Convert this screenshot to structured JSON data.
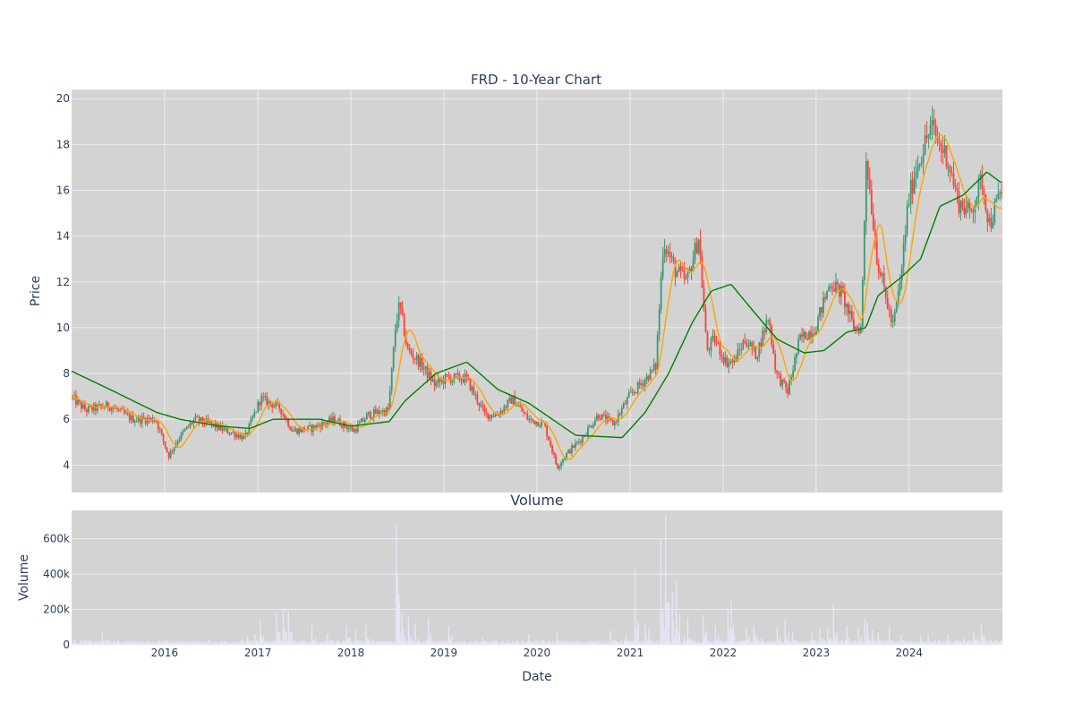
{
  "colors": {
    "plot_bg": "#d3d3d3",
    "grid": "#ecedf0",
    "up_candle": "#3d9970",
    "down_candle": "#ff4136",
    "ma_short": "#ffa500",
    "ma_long": "#008000",
    "volume_bar": "#e6e6fa",
    "text": "#2a3f5f"
  },
  "chart_data": [
    {
      "type": "candlestick",
      "title": "FRD - 10-Year Chart",
      "ylabel": "Price",
      "ylim": [
        2.8,
        20.4
      ],
      "xlim": [
        "2015-01-01",
        "2025-01-01"
      ],
      "yticks": [
        4,
        6,
        8,
        10,
        12,
        14,
        16,
        18,
        20
      ],
      "grid": true,
      "series": [
        {
          "role": "candles",
          "increasing_color": "#3d9970",
          "decreasing_color": "#ff4136"
        },
        {
          "role": "short moving average",
          "color": "#ffa500"
        },
        {
          "role": "long moving average",
          "color": "#008000"
        }
      ],
      "close_estimate": {
        "dates": [
          "2015-01-01",
          "2015-03-01",
          "2015-06-01",
          "2015-09-01",
          "2015-12-01",
          "2016-01-20",
          "2016-03-01",
          "2016-05-01",
          "2016-07-01",
          "2016-09-01",
          "2016-11-15",
          "2017-01-15",
          "2017-04-01",
          "2017-05-20",
          "2017-08-01",
          "2017-11-01",
          "2018-01-15",
          "2018-03-15",
          "2018-06-01",
          "2018-07-01",
          "2018-07-15",
          "2018-08-15",
          "2018-10-01",
          "2018-12-01",
          "2019-01-15",
          "2019-04-01",
          "2019-06-15",
          "2019-08-01",
          "2019-10-01",
          "2019-12-01",
          "2020-02-01",
          "2020-03-01",
          "2020-03-23",
          "2020-05-01",
          "2020-07-01",
          "2020-09-01",
          "2020-11-01",
          "2021-01-01",
          "2021-03-01",
          "2021-04-15",
          "2021-05-15",
          "2021-07-01",
          "2021-08-15",
          "2021-10-01",
          "2021-11-01",
          "2021-12-01",
          "2022-01-15",
          "2022-02-15",
          "2022-04-01",
          "2022-05-15",
          "2022-07-01",
          "2022-08-01",
          "2022-09-15",
          "2022-11-01",
          "2023-01-01",
          "2023-03-01",
          "2023-04-15",
          "2023-06-01",
          "2023-07-01",
          "2023-07-20",
          "2023-09-01",
          "2023-11-01",
          "2023-12-01",
          "2024-01-01",
          "2024-02-01",
          "2024-04-01",
          "2024-05-01",
          "2024-06-01",
          "2024-07-15",
          "2024-09-01",
          "2024-10-15",
          "2024-11-15",
          "2024-12-31"
        ],
        "values": [
          7.0,
          6.4,
          6.6,
          6.0,
          6.0,
          4.4,
          5.2,
          6.0,
          5.8,
          5.5,
          5.2,
          6.9,
          6.5,
          5.5,
          5.6,
          6.0,
          5.5,
          6.2,
          6.4,
          10.3,
          11.0,
          9.0,
          8.5,
          7.5,
          7.8,
          7.8,
          6.2,
          6.2,
          6.9,
          6.0,
          5.8,
          4.8,
          3.9,
          4.5,
          5.2,
          6.2,
          5.8,
          7.0,
          7.7,
          8.3,
          13.8,
          12.5,
          12.0,
          14.0,
          9.0,
          9.5,
          8.5,
          8.5,
          9.5,
          8.8,
          10.5,
          8.0,
          7.2,
          9.5,
          10.0,
          12.0,
          11.5,
          10.0,
          10.0,
          17.5,
          13.0,
          10.0,
          12.0,
          15.5,
          17.0,
          18.8,
          18.0,
          17.5,
          15.5,
          15.0,
          16.5,
          14.5,
          16.0
        ]
      },
      "long_ma_estimate": {
        "dates": [
          "2015-01-01",
          "2015-06-01",
          "2015-12-01",
          "2016-03-01",
          "2016-08-01",
          "2016-12-01",
          "2017-03-01",
          "2017-09-01",
          "2018-01-01",
          "2018-06-01",
          "2018-08-01",
          "2018-12-01",
          "2019-04-01",
          "2019-08-01",
          "2019-12-01",
          "2020-06-01",
          "2020-12-01",
          "2021-03-01",
          "2021-06-01",
          "2021-09-01",
          "2021-11-15",
          "2022-02-01",
          "2022-05-01",
          "2022-08-01",
          "2022-11-15",
          "2023-02-01",
          "2023-05-01",
          "2023-07-15",
          "2023-09-01",
          "2023-12-01",
          "2024-02-15",
          "2024-05-01",
          "2024-08-01",
          "2024-11-01",
          "2024-12-31"
        ],
        "values": [
          8.1,
          7.3,
          6.3,
          6.0,
          5.7,
          5.6,
          6.0,
          6.0,
          5.7,
          5.9,
          6.8,
          8.0,
          8.5,
          7.3,
          6.7,
          5.3,
          5.2,
          6.3,
          8.0,
          10.2,
          11.6,
          11.9,
          10.7,
          9.5,
          8.9,
          9.0,
          9.8,
          10.0,
          11.4,
          12.2,
          13.0,
          15.3,
          15.8,
          16.8,
          16.3
        ]
      }
    },
    {
      "type": "bar",
      "title": "Volume",
      "ylabel": "Volume",
      "xlabel": "Date",
      "ylim": [
        0,
        760000
      ],
      "yticks": [
        0,
        200000,
        400000,
        600000
      ],
      "ytick_labels": [
        "0",
        "200k",
        "400k",
        "600k"
      ],
      "x_tick_labels": [
        "2016",
        "2017",
        "2018",
        "2019",
        "2020",
        "2021",
        "2022",
        "2023",
        "2024"
      ],
      "baseline_volume_estimate": 15000,
      "spikes": {
        "dates": [
          "2015-05-01",
          "2016-11-20",
          "2016-12-20",
          "2017-01-10",
          "2017-03-15",
          "2017-04-10",
          "2017-05-01",
          "2017-08-01",
          "2017-10-01",
          "2017-12-15",
          "2018-01-20",
          "2018-03-01",
          "2018-06-28",
          "2018-07-02",
          "2018-07-20",
          "2018-08-15",
          "2018-09-10",
          "2018-11-01",
          "2019-01-20",
          "2019-06-01",
          "2019-12-01",
          "2020-03-20",
          "2020-10-15",
          "2020-12-15",
          "2021-01-20",
          "2021-03-01",
          "2021-03-15",
          "2021-05-01",
          "2021-05-20",
          "2021-06-15",
          "2021-07-01",
          "2021-08-01",
          "2021-08-15",
          "2021-10-15",
          "2021-12-01",
          "2022-01-20",
          "2022-02-01",
          "2022-04-01",
          "2022-05-01",
          "2022-06-01",
          "2022-08-01",
          "2022-09-01",
          "2022-10-01",
          "2022-12-15",
          "2023-01-15",
          "2023-02-15",
          "2023-03-10",
          "2023-05-01",
          "2023-06-15",
          "2023-07-10",
          "2023-07-20",
          "2023-08-10",
          "2023-09-01",
          "2023-10-15",
          "2023-12-01",
          "2024-02-15",
          "2024-03-15",
          "2024-06-01",
          "2024-08-01",
          "2024-09-10",
          "2024-10-10",
          "2024-11-15"
        ],
        "values": [
          70000,
          45000,
          60000,
          140000,
          180000,
          200000,
          190000,
          110000,
          60000,
          110000,
          80000,
          120000,
          680000,
          390000,
          180000,
          160000,
          120000,
          150000,
          110000,
          40000,
          60000,
          70000,
          80000,
          60000,
          430000,
          120000,
          90000,
          600000,
          730000,
          300000,
          360000,
          50000,
          150000,
          170000,
          110000,
          200000,
          250000,
          90000,
          110000,
          40000,
          100000,
          140000,
          70000,
          70000,
          90000,
          100000,
          230000,
          110000,
          90000,
          150000,
          130000,
          80000,
          70000,
          100000,
          60000,
          50000,
          60000,
          60000,
          40000,
          80000,
          120000,
          30000
        ]
      }
    }
  ]
}
